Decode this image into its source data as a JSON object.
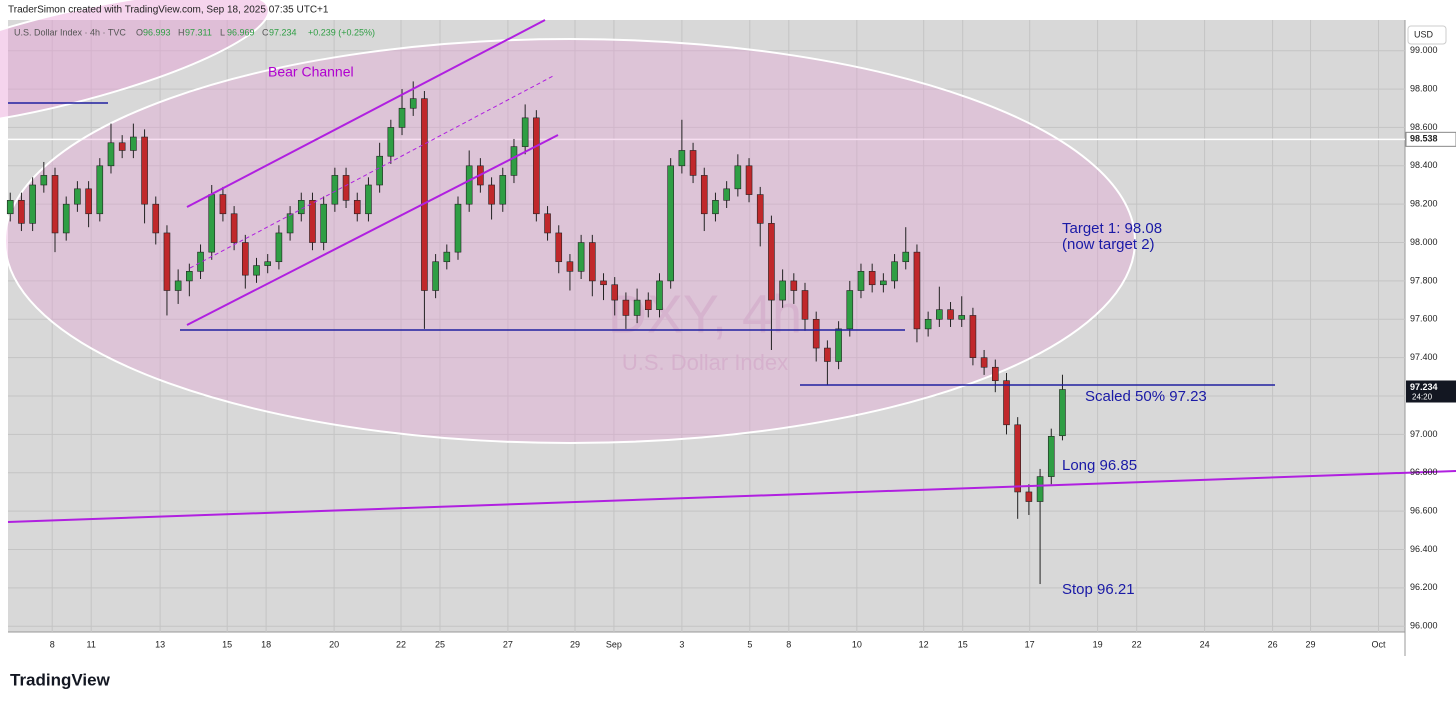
{
  "chart_data": {
    "type": "candlestick",
    "credit": "TraderSimon created with TradingView.com, Sep 18, 2025 07:35 UTC+1",
    "symbol": "U.S. Dollar Index · 4h · TVC",
    "ohlc_letters": [
      "O",
      "H",
      "L",
      "C"
    ],
    "change": "+0.239 (+0.25%)",
    "currency": "USD",
    "countdown": "24:20",
    "watermark": [
      "DXY, 4h",
      "U.S. Dollar Index"
    ],
    "brand": "TradingView",
    "up_color": "#2f9e44",
    "down_color": "#c0282b",
    "open": [
      98.15,
      98.22,
      98.1,
      98.3,
      98.35,
      98.05,
      98.2,
      98.28,
      98.15,
      98.4,
      98.52,
      98.48,
      98.55,
      98.2,
      98.05,
      97.75,
      97.8,
      97.85,
      97.95,
      98.25,
      98.15,
      98.0,
      97.83,
      97.88,
      97.9,
      98.05,
      98.15,
      98.22,
      98.0,
      98.2,
      98.35,
      98.22,
      98.15,
      98.3,
      98.45,
      98.6,
      98.7,
      98.75,
      97.75,
      97.9,
      97.95,
      98.2,
      98.4,
      98.3,
      98.2,
      98.35,
      98.5,
      98.65,
      98.15,
      98.05,
      97.9,
      97.85,
      98.0,
      97.8,
      97.78,
      97.7,
      97.62,
      97.7,
      97.65,
      97.8,
      98.4,
      98.48,
      98.35,
      98.15,
      98.22,
      98.28,
      98.4,
      98.25,
      98.1,
      97.7,
      97.8,
      97.75,
      97.6,
      97.45,
      97.38,
      97.55,
      97.75,
      97.85,
      97.78,
      97.8,
      97.9,
      97.95,
      97.55,
      97.6,
      97.65,
      97.6,
      97.62,
      97.4,
      97.35,
      97.28,
      97.05,
      96.7,
      96.65,
      96.78,
      96.993
    ],
    "high": [
      98.26,
      98.26,
      98.34,
      98.42,
      98.39,
      98.24,
      98.32,
      98.32,
      98.44,
      98.62,
      98.56,
      98.62,
      98.59,
      98.24,
      98.09,
      97.86,
      97.89,
      97.99,
      98.3,
      98.29,
      98.19,
      98.04,
      97.92,
      97.94,
      98.09,
      98.19,
      98.26,
      98.26,
      98.24,
      98.39,
      98.39,
      98.26,
      98.34,
      98.52,
      98.64,
      98.8,
      98.84,
      98.79,
      97.94,
      97.99,
      98.24,
      98.48,
      98.44,
      98.34,
      98.39,
      98.54,
      98.72,
      98.69,
      98.19,
      98.09,
      97.94,
      98.04,
      98.04,
      97.84,
      97.82,
      97.74,
      97.76,
      97.74,
      97.84,
      98.44,
      98.64,
      98.52,
      98.39,
      98.26,
      98.32,
      98.46,
      98.44,
      98.29,
      98.14,
      97.86,
      97.84,
      97.79,
      97.64,
      97.49,
      97.59,
      97.8,
      97.89,
      97.89,
      97.84,
      97.94,
      98.08,
      97.99,
      97.64,
      97.77,
      97.69,
      97.72,
      97.66,
      97.44,
      97.39,
      97.32,
      97.09,
      96.74,
      96.82,
      97.03,
      97.311
    ],
    "low": [
      98.11,
      98.06,
      98.06,
      98.26,
      97.95,
      98.01,
      98.16,
      98.08,
      98.11,
      98.36,
      98.44,
      98.44,
      98.1,
      97.99,
      97.62,
      97.68,
      97.72,
      97.81,
      97.91,
      98.11,
      97.96,
      97.76,
      97.79,
      97.84,
      97.86,
      98.01,
      98.11,
      97.96,
      97.96,
      98.16,
      98.18,
      98.11,
      98.11,
      98.26,
      98.41,
      98.56,
      98.66,
      97.55,
      97.71,
      97.86,
      97.91,
      98.16,
      98.26,
      98.12,
      98.16,
      98.31,
      98.46,
      98.11,
      98.01,
      97.84,
      97.75,
      97.81,
      97.72,
      97.7,
      97.62,
      97.55,
      97.58,
      97.61,
      97.61,
      97.76,
      98.36,
      98.31,
      98.06,
      98.11,
      98.18,
      98.24,
      98.21,
      97.98,
      97.44,
      97.66,
      97.68,
      97.54,
      97.38,
      97.26,
      97.34,
      97.51,
      97.71,
      97.74,
      97.74,
      97.76,
      97.86,
      97.48,
      97.51,
      97.56,
      97.56,
      97.56,
      97.36,
      97.31,
      97.22,
      97.0,
      96.56,
      96.58,
      96.22,
      96.74,
      96.969
    ],
    "close": [
      98.22,
      98.1,
      98.3,
      98.35,
      98.05,
      98.2,
      98.28,
      98.15,
      98.4,
      98.52,
      98.48,
      98.55,
      98.2,
      98.05,
      97.75,
      97.8,
      97.85,
      97.95,
      98.25,
      98.15,
      98.0,
      97.83,
      97.88,
      97.9,
      98.05,
      98.15,
      98.22,
      98.0,
      98.2,
      98.35,
      98.22,
      98.15,
      98.3,
      98.45,
      98.6,
      98.7,
      98.75,
      97.75,
      97.9,
      97.95,
      98.2,
      98.4,
      98.3,
      98.2,
      98.35,
      98.5,
      98.65,
      98.15,
      98.05,
      97.9,
      97.85,
      98.0,
      97.8,
      97.78,
      97.7,
      97.62,
      97.7,
      97.65,
      97.8,
      98.4,
      98.48,
      98.35,
      98.15,
      98.22,
      98.28,
      98.4,
      98.25,
      98.1,
      97.7,
      97.8,
      97.75,
      97.6,
      97.45,
      97.38,
      97.55,
      97.75,
      97.85,
      97.78,
      97.8,
      97.9,
      97.95,
      97.55,
      97.6,
      97.65,
      97.6,
      97.62,
      97.4,
      97.35,
      97.28,
      97.05,
      96.7,
      96.65,
      96.78,
      96.99,
      97.234
    ],
    "xlim": [
      -0.2,
      124.6
    ],
    "xticks": [
      {
        "value": 3.75,
        "label": "8"
      },
      {
        "value": 7.23,
        "label": "11"
      },
      {
        "value": 13.39,
        "label": "13"
      },
      {
        "value": 19.38,
        "label": "15"
      },
      {
        "value": 22.86,
        "label": "18"
      },
      {
        "value": 28.93,
        "label": "20"
      },
      {
        "value": 34.91,
        "label": "22"
      },
      {
        "value": 38.39,
        "label": "25"
      },
      {
        "value": 44.46,
        "label": "27"
      },
      {
        "value": 50.45,
        "label": "29"
      },
      {
        "value": 53.93,
        "label": "Sep"
      },
      {
        "value": 60,
        "label": "3"
      },
      {
        "value": 66.07,
        "label": "5"
      },
      {
        "value": 69.55,
        "label": "8"
      },
      {
        "value": 75.63,
        "label": "10"
      },
      {
        "value": 81.6,
        "label": "12"
      },
      {
        "value": 85.09,
        "label": "15"
      },
      {
        "value": 91.07,
        "label": "17"
      },
      {
        "value": 97.14,
        "label": "19"
      },
      {
        "value": 100.63,
        "label": "22"
      },
      {
        "value": 106.7,
        "label": "24"
      },
      {
        "value": 112.77,
        "label": "26"
      },
      {
        "value": 116.16,
        "label": "29"
      },
      {
        "value": 122.23,
        "label": "Oct"
      }
    ],
    "ylim": [
      95.97,
      99.16
    ],
    "yticks": [
      {
        "value": 96,
        "label": "96.000"
      },
      {
        "value": 96.2,
        "label": "96.200"
      },
      {
        "value": 96.4,
        "label": "96.400"
      },
      {
        "value": 96.6,
        "label": "96.600"
      },
      {
        "value": 96.8,
        "label": "96.800"
      },
      {
        "value": 97,
        "label": "97.000"
      },
      {
        "value": 97.2,
        "label": "97.200"
      },
      {
        "value": 97.4,
        "label": "97.400"
      },
      {
        "value": 97.6,
        "label": "97.600"
      },
      {
        "value": 97.8,
        "label": "97.800"
      },
      {
        "value": 98,
        "label": "98.000"
      },
      {
        "value": 98.2,
        "label": "98.200"
      },
      {
        "value": 98.4,
        "label": "98.400"
      },
      {
        "value": 98.6,
        "label": "98.600"
      },
      {
        "value": 98.8,
        "label": "98.800"
      },
      {
        "value": 99,
        "label": "99.000"
      }
    ],
    "price_line": 98.538,
    "grid": true,
    "annotations": [
      "Bear Channel",
      "Target 1: 98.08",
      "(now target 2)",
      "Scaled 50% 97.23",
      "Long 96.85",
      "Stop 96.21"
    ]
  }
}
